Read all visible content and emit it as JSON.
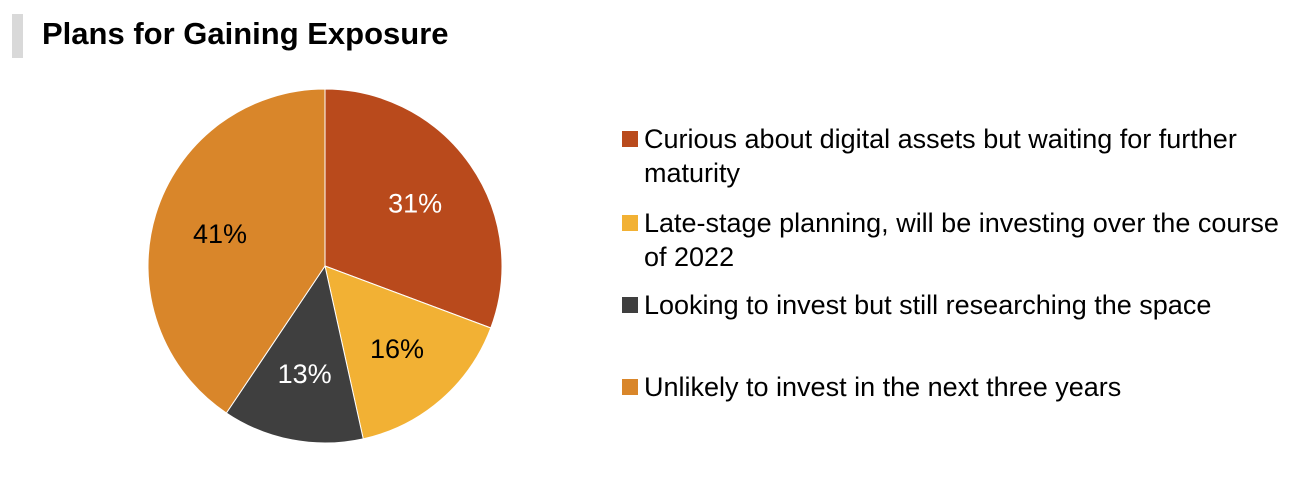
{
  "title": "Plans for Gaining Exposure",
  "chart_data": {
    "type": "pie",
    "title": "Plans for Gaining Exposure",
    "legend_position": "right",
    "slices": [
      {
        "label": "Curious about digital assets but waiting for further maturity",
        "value": 31,
        "value_label": "31%",
        "color": "#b94a1c",
        "label_color": "#ffffff"
      },
      {
        "label": "Late-stage planning, will be investing over the course of 2022",
        "value": 16,
        "value_label": "16%",
        "color": "#f2b134",
        "label_color": "#000000"
      },
      {
        "label": "Looking to invest but still researching the space",
        "value": 13,
        "value_label": "13%",
        "color": "#3f3f3f",
        "label_color": "#ffffff"
      },
      {
        "label": "Unlikely to invest in the next three years",
        "value": 41,
        "value_label": "41%",
        "color": "#d9862a",
        "label_color": "#000000"
      }
    ]
  }
}
